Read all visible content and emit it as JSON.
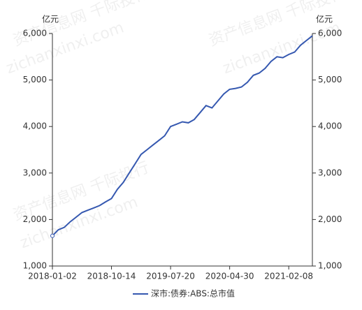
{
  "chart_data": {
    "type": "line",
    "y_label": "亿元",
    "y2_label": "亿元",
    "categories": [
      "2018-01-02",
      null,
      null,
      null,
      null,
      null,
      null,
      null,
      null,
      null,
      "2018-10-14",
      null,
      null,
      null,
      null,
      null,
      null,
      null,
      null,
      null,
      "2019-07-20",
      null,
      null,
      null,
      null,
      null,
      null,
      null,
      null,
      null,
      "2020-04-30",
      null,
      null,
      null,
      null,
      null,
      null,
      null,
      null,
      null,
      "2021-02-08",
      null,
      null,
      null,
      null
    ],
    "series": [
      {
        "name": "深市:债券:ABS:总市值",
        "color": "#3558b0",
        "values": [
          1650,
          1780,
          1830,
          1950,
          2050,
          2150,
          2200,
          2250,
          2300,
          2380,
          2450,
          2650,
          2800,
          3000,
          3200,
          3400,
          3500,
          3600,
          3700,
          3800,
          4000,
          4050,
          4100,
          4080,
          4150,
          4300,
          4450,
          4400,
          4550,
          4700,
          4800,
          4820,
          4850,
          4950,
          5100,
          5150,
          5250,
          5400,
          5500,
          5480,
          5550,
          5600,
          5750,
          5850,
          5950
        ]
      }
    ],
    "ylim": [
      1000,
      6000
    ],
    "yticks": [
      {
        "value": 1000,
        "label": "1,000"
      },
      {
        "value": 2000,
        "label": "2,000"
      },
      {
        "value": 3000,
        "label": "3,000"
      },
      {
        "value": 4000,
        "label": "4,000"
      },
      {
        "value": 5000,
        "label": "5,000"
      },
      {
        "value": 6000,
        "label": "6,000"
      }
    ],
    "y2lim": [
      1000,
      6000
    ],
    "y2ticks": [
      {
        "value": 1000,
        "label": "1,000"
      },
      {
        "value": 2000,
        "label": "2,000"
      },
      {
        "value": 3000,
        "label": "3,000"
      },
      {
        "value": 4000,
        "label": "4,000"
      },
      {
        "value": 5000,
        "label": "5,000"
      },
      {
        "value": 6000,
        "label": "6,000"
      }
    ],
    "grid": false,
    "legend": "bottom",
    "watermarks": [
      "资产信息网 千际投行",
      "zichanxinxi.com",
      "资产信息网 千际投行",
      "zichanxinxi.com",
      "资产信息网 千际投行",
      "zichanxinxi.com"
    ]
  }
}
